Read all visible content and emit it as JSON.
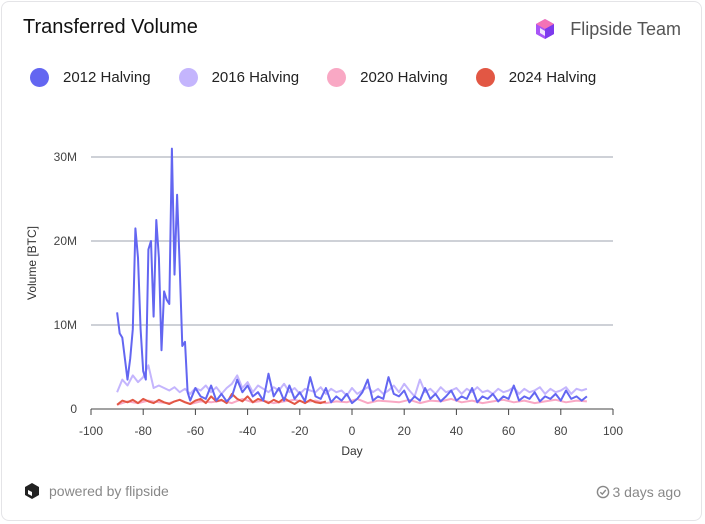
{
  "card": {
    "title": "Transferred Volume",
    "brand": "Flipside Team",
    "footer_powered": "powered by flipside",
    "footer_time": "3 days ago"
  },
  "chart_data": {
    "type": "line",
    "title": "Transferred Volume",
    "xlabel": "Day",
    "ylabel": "Volume [BTC]",
    "xlim": [
      -100,
      100
    ],
    "ylim": [
      0,
      32000000
    ],
    "x_ticks": [
      "-100",
      "-80",
      "-60",
      "-40",
      "-20",
      "0",
      "20",
      "40",
      "60",
      "80",
      "100"
    ],
    "y_ticks": [
      {
        "value": 0,
        "label": "0"
      },
      {
        "value": 10000000,
        "label": "10M"
      },
      {
        "value": 20000000,
        "label": "20M"
      },
      {
        "value": 30000000,
        "label": "30M"
      }
    ],
    "grid": "horizontal",
    "legend_position": "top",
    "series": [
      {
        "name": "2012 Halving",
        "color": "#6366f1",
        "x": [
          -90,
          -89,
          -88,
          -87,
          -86,
          -85,
          -84,
          -83,
          -82,
          -81,
          -80,
          -79,
          -78,
          -77,
          -76,
          -75,
          -74,
          -73,
          -72,
          -71,
          -70,
          -69,
          -68,
          -67,
          -66,
          -65,
          -64,
          -63,
          -62,
          -60,
          -58,
          -56,
          -54,
          -52,
          -50,
          -48,
          -46,
          -44,
          -42,
          -40,
          -38,
          -36,
          -34,
          -32,
          -30,
          -28,
          -26,
          -24,
          -22,
          -20,
          -18,
          -16,
          -14,
          -12,
          -10,
          -8,
          -6,
          -4,
          -2,
          0,
          2,
          4,
          6,
          8,
          10,
          12,
          14,
          16,
          18,
          20,
          22,
          24,
          26,
          28,
          30,
          32,
          34,
          36,
          38,
          40,
          42,
          44,
          46,
          48,
          50,
          52,
          54,
          56,
          58,
          60,
          62,
          64,
          66,
          68,
          70,
          72,
          74,
          76,
          78,
          80,
          82,
          84,
          86,
          88,
          90
        ],
        "y": [
          11500000,
          9000000,
          8500000,
          6000000,
          3500000,
          6000000,
          9500000,
          21500000,
          18000000,
          9500000,
          4500000,
          3500000,
          19000000,
          20000000,
          11000000,
          22500000,
          18000000,
          7000000,
          14000000,
          13000000,
          12500000,
          31000000,
          16000000,
          25500000,
          17000000,
          7500000,
          8000000,
          2000000,
          1000000,
          2500000,
          1500000,
          1200000,
          2800000,
          1000000,
          1800000,
          900000,
          1500000,
          3500000,
          2000000,
          2800000,
          1500000,
          2000000,
          1000000,
          4200000,
          1500000,
          2500000,
          1000000,
          2800000,
          1200000,
          2000000,
          900000,
          3800000,
          1500000,
          1200000,
          2500000,
          800000,
          1500000,
          1000000,
          1800000,
          700000,
          1200000,
          2000000,
          3500000,
          1000000,
          1500000,
          1200000,
          3800000,
          1800000,
          1500000,
          2200000,
          800000,
          1500000,
          1000000,
          2500000,
          1200000,
          1800000,
          900000,
          1500000,
          2200000,
          1000000,
          1500000,
          1200000,
          2500000,
          800000,
          1500000,
          1200000,
          1800000,
          900000,
          1500000,
          1200000,
          2800000,
          1000000,
          1500000,
          1200000,
          2000000,
          900000,
          1500000,
          1200000,
          1800000,
          1000000,
          2200000,
          1200000,
          1500000,
          1000000,
          1500000
        ]
      },
      {
        "name": "2016 Halving",
        "color": "#c4b5fd",
        "x": [
          -90,
          -88,
          -86,
          -84,
          -82,
          -80,
          -78,
          -76,
          -74,
          -72,
          -70,
          -68,
          -66,
          -64,
          -62,
          -60,
          -58,
          -56,
          -54,
          -52,
          -50,
          -48,
          -46,
          -44,
          -42,
          -40,
          -38,
          -36,
          -34,
          -32,
          -30,
          -28,
          -26,
          -24,
          -22,
          -20,
          -18,
          -16,
          -14,
          -12,
          -10,
          -8,
          -6,
          -4,
          -2,
          0,
          2,
          4,
          6,
          8,
          10,
          12,
          14,
          16,
          18,
          20,
          22,
          24,
          26,
          28,
          30,
          32,
          34,
          36,
          38,
          40,
          42,
          44,
          46,
          48,
          50,
          52,
          54,
          56,
          58,
          60,
          62,
          64,
          66,
          68,
          70,
          72,
          74,
          76,
          78,
          80,
          82,
          84,
          86,
          88,
          90
        ],
        "y": [
          2000000,
          3500000,
          2800000,
          4000000,
          3200000,
          3800000,
          5200000,
          2500000,
          2800000,
          2500000,
          2200000,
          2600000,
          2000000,
          2400000,
          1800000,
          2500000,
          2200000,
          2800000,
          2000000,
          2600000,
          1800000,
          2500000,
          3000000,
          4000000,
          2500000,
          3200000,
          2000000,
          2800000,
          2400000,
          2000000,
          2600000,
          2200000,
          3000000,
          2000000,
          2500000,
          1800000,
          2400000,
          2200000,
          2000000,
          2600000,
          1800000,
          2400000,
          2000000,
          2200000,
          1600000,
          2500000,
          1800000,
          2200000,
          2600000,
          2000000,
          2400000,
          1800000,
          2200000,
          2800000,
          2000000,
          3000000,
          2200000,
          1500000,
          3500000,
          2000000,
          2400000,
          1800000,
          2600000,
          2000000,
          2200000,
          2500000,
          1800000,
          2400000,
          2000000,
          2600000,
          2000000,
          2200000,
          1800000,
          2400000,
          2000000,
          2200000,
          2600000,
          1800000,
          2400000,
          2000000,
          2200000,
          2600000,
          1800000,
          2400000,
          2000000,
          2200000,
          2600000,
          1800000,
          2400000,
          2200000,
          2400000
        ]
      },
      {
        "name": "2020 Halving",
        "color": "#f9a8c4",
        "x": [
          -90,
          -86,
          -82,
          -78,
          -74,
          -70,
          -66,
          -62,
          -58,
          -54,
          -50,
          -46,
          -42,
          -38,
          -34,
          -30,
          -26,
          -22,
          -18,
          -14,
          -10,
          -6,
          -2,
          2,
          6,
          10,
          14,
          18,
          22,
          26,
          30,
          34,
          38,
          42,
          46,
          50,
          54,
          58,
          62,
          66,
          70,
          74,
          78,
          82,
          86,
          90
        ],
        "y": [
          500000,
          900000,
          700000,
          1000000,
          800000,
          700000,
          1100000,
          600000,
          900000,
          800000,
          1000000,
          700000,
          1200000,
          800000,
          1000000,
          700000,
          900000,
          1100000,
          800000,
          1000000,
          700000,
          900000,
          800000,
          1200000,
          700000,
          1000000,
          900000,
          800000,
          1100000,
          700000,
          1000000,
          900000,
          1200000,
          800000,
          1000000,
          700000,
          900000,
          1100000,
          800000,
          1000000,
          700000,
          900000,
          1100000,
          800000,
          1000000,
          900000
        ]
      },
      {
        "name": "2024 Halving",
        "color": "#e25744",
        "x": [
          -90,
          -88,
          -86,
          -84,
          -82,
          -80,
          -78,
          -76,
          -74,
          -72,
          -70,
          -68,
          -66,
          -64,
          -62,
          -60,
          -58,
          -56,
          -54,
          -52,
          -50,
          -48,
          -46,
          -44,
          -42,
          -40,
          -38,
          -36,
          -34,
          -32,
          -30,
          -28,
          -26,
          -24,
          -22,
          -20,
          -18,
          -16,
          -14,
          -12,
          -10
        ],
        "y": [
          500000,
          1000000,
          800000,
          1100000,
          700000,
          1200000,
          900000,
          700000,
          1100000,
          800000,
          600000,
          900000,
          1100000,
          800000,
          600000,
          1000000,
          1200000,
          700000,
          1500000,
          900000,
          1100000,
          700000,
          1800000,
          1200000,
          900000,
          1500000,
          800000,
          1200000,
          1000000,
          700000,
          1100000,
          800000,
          1300000,
          900000,
          600000,
          1000000,
          700000,
          1100000,
          800000,
          700000,
          900000
        ]
      }
    ]
  }
}
